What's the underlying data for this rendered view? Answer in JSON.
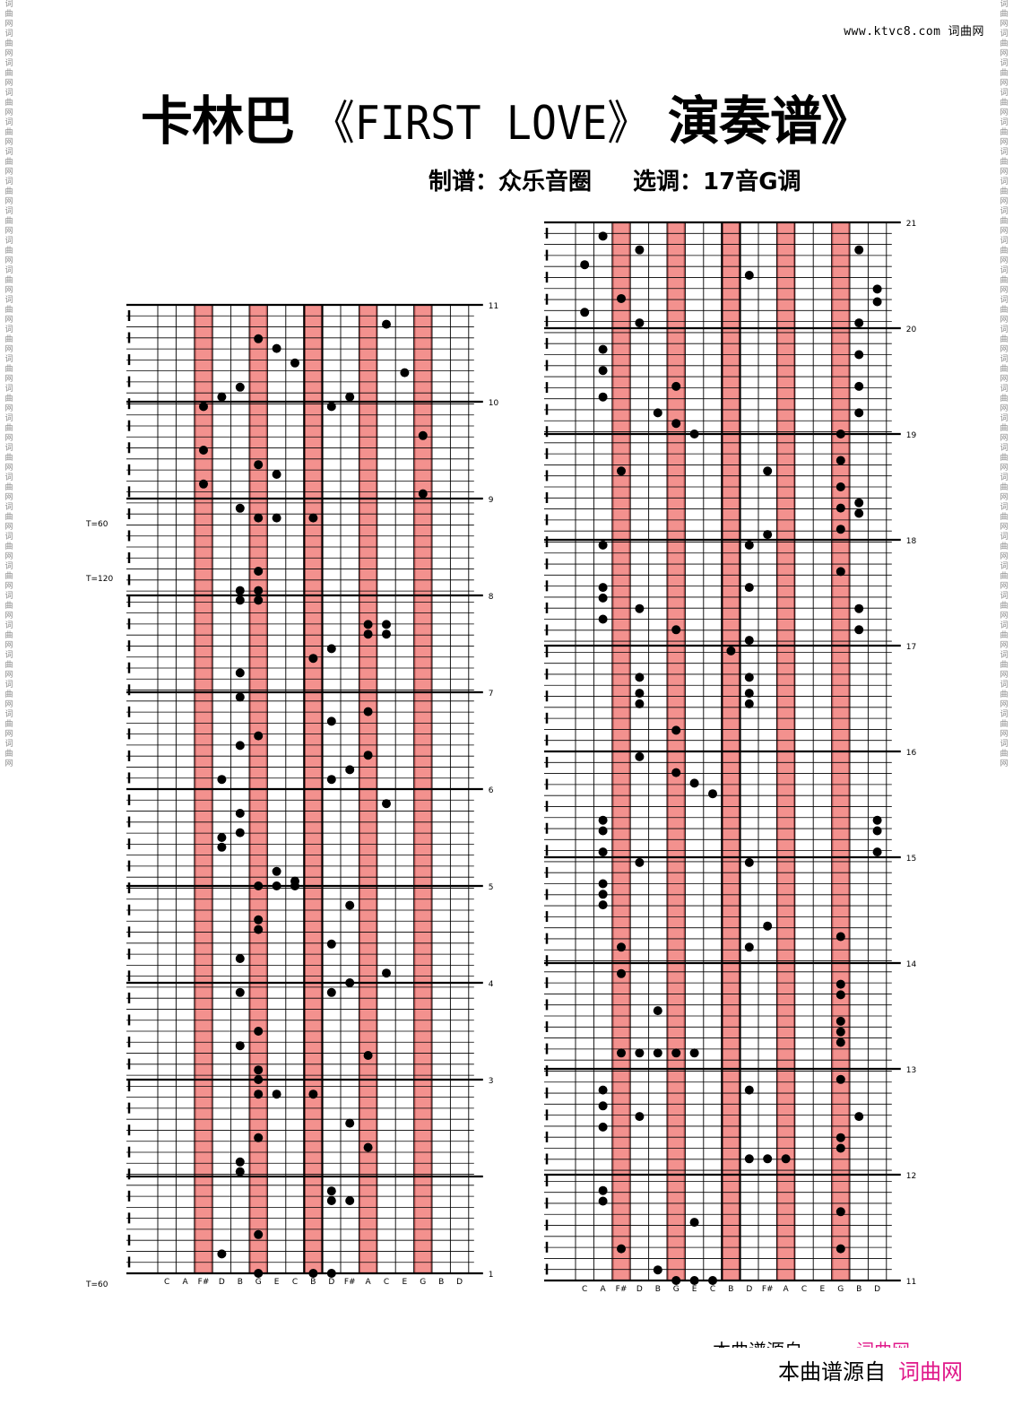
{
  "watermark": {
    "site": "www.ktvc8.com",
    "site_cn": "词曲网",
    "side_text": "词曲网"
  },
  "title": {
    "prefix": "卡林巴",
    "song": "《FIRST LOVE》",
    "suffix": "演奏谱》"
  },
  "credits": {
    "arranger": "制谱：众乐音圈",
    "key": "选调：17音G调"
  },
  "tempo_marks": [
    "T=60",
    "T=120",
    "T=60"
  ],
  "footer": {
    "source": "本曲谱源自",
    "site": "词曲网"
  },
  "left_column": {
    "key_labels": [
      "C",
      "A",
      "F#",
      "D",
      "B",
      "G",
      "E",
      "C",
      "B",
      "D",
      "F#",
      "A",
      "C",
      "E",
      "G",
      "B",
      "D"
    ],
    "measure_numbers": [
      "11",
      "10",
      "9",
      "8",
      "7",
      "6",
      "5",
      "4",
      "3",
      "",
      "1"
    ],
    "highlight_keys": [
      "F#",
      "G",
      "B",
      "A",
      "G"
    ]
  },
  "right_column": {
    "key_labels": [
      "C",
      "A",
      "F#",
      "D",
      "B",
      "G",
      "E",
      "C",
      "B",
      "D",
      "F#",
      "A",
      "C",
      "E",
      "G",
      "B",
      "D"
    ],
    "measure_numbers": [
      "21",
      "20",
      "19",
      "18",
      "17",
      "16",
      "15",
      "14",
      "13",
      "12",
      "11"
    ],
    "highlight_keys": [
      "F#",
      "G",
      "B",
      "A",
      "G"
    ]
  }
}
